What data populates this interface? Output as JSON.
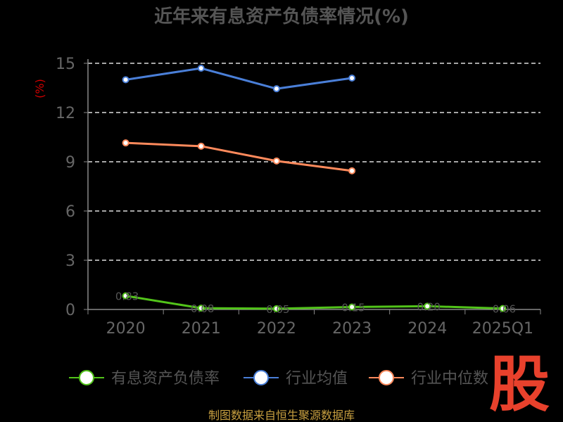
{
  "title": "近年来有息资产负债率情况(%)",
  "source": "制图数据来自恒生聚源数据库",
  "logo_text": "股",
  "chart_data": {
    "type": "line",
    "unit_label": "(%)",
    "categories": [
      "2020",
      "2021",
      "2022",
      "2023",
      "2024",
      "2025Q1"
    ],
    "ylim": [
      0,
      15
    ],
    "yticks": [
      "0",
      "3",
      "6",
      "9",
      "12",
      "15"
    ],
    "grid": true,
    "legend_position": "bottom",
    "series": [
      {
        "name": "有息资产负债率",
        "color": "#52c41a",
        "values": [
          0.83,
          0.08,
          0.05,
          0.15,
          0.2,
          0.06
        ],
        "labels": [
          "0.83",
          "0.08",
          "0.05",
          "0.15",
          "0.20",
          "0.06"
        ]
      },
      {
        "name": "行业均值",
        "color": "#4a7fd8",
        "values": [
          14.0,
          14.7,
          13.45,
          14.1,
          null,
          null
        ]
      },
      {
        "name": "行业中位数",
        "color": "#ff8a5c",
        "values": [
          10.15,
          9.95,
          9.05,
          8.45,
          null,
          null
        ]
      }
    ]
  }
}
